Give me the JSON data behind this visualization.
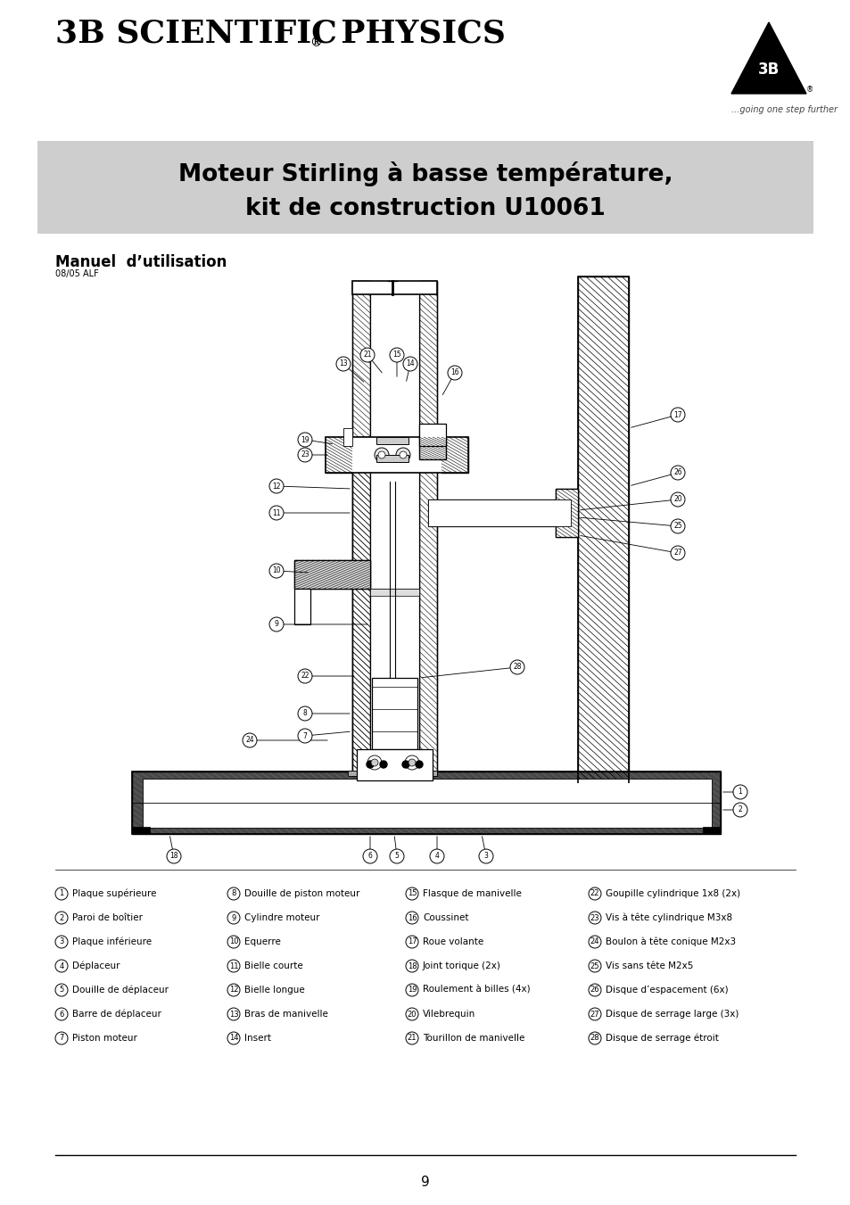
{
  "page_bg": "#ffffff",
  "header_title_part1": "3B SCIENTIFIC",
  "header_title_reg": "®",
  "header_title_part2": "  PHYSICS",
  "header_title_size": 26,
  "logo_subtext": "...going one step further",
  "banner_bg": "#d0d0d0",
  "banner_text_line1": "Moteur Stirling à basse température,",
  "banner_text_line2": "kit de construction U10061",
  "banner_text_size": 19,
  "manual_label": "Manuel  d’utilisation",
  "manual_label_size": 12,
  "manual_date": "08/05 ALF",
  "manual_date_size": 7,
  "parts_columns": [
    [
      [
        1,
        "Plaque supérieure"
      ],
      [
        2,
        "Paroi de boîtier"
      ],
      [
        3,
        "Plaque inférieure"
      ],
      [
        4,
        "Déplaceur"
      ],
      [
        5,
        "Douille de déplaceur"
      ],
      [
        6,
        "Barre de déplaceur"
      ],
      [
        7,
        "Piston moteur"
      ]
    ],
    [
      [
        8,
        "Douille de piston moteur"
      ],
      [
        9,
        "Cylindre moteur"
      ],
      [
        10,
        "Equerre"
      ],
      [
        11,
        "Bielle courte"
      ],
      [
        12,
        "Bielle longue"
      ],
      [
        13,
        "Bras de manivelle"
      ],
      [
        14,
        "Insert"
      ]
    ],
    [
      [
        15,
        "Flasque de manivelle"
      ],
      [
        16,
        "Coussinet"
      ],
      [
        17,
        "Roue volante"
      ],
      [
        18,
        "Joint torique (2x)"
      ],
      [
        19,
        "Roulement à billes (4x)"
      ],
      [
        20,
        "Vilebrequin"
      ],
      [
        21,
        "Tourillon de manivelle"
      ]
    ],
    [
      [
        22,
        "Goupille cylindrique 1x8 (2x)"
      ],
      [
        23,
        "Vis à tête cylindrique M3x8"
      ],
      [
        24,
        "Boulon à tête conique M2x3"
      ],
      [
        25,
        "Vis sans tête M2x5"
      ],
      [
        26,
        "Disque d’espacement (6x)"
      ],
      [
        27,
        "Disque de serrage large (3x)"
      ],
      [
        28,
        "Disque de serrage étroit"
      ]
    ]
  ],
  "page_number": "9",
  "text_color": "#000000",
  "parts_font_size": 7.5,
  "circle_font_size": 6.0
}
